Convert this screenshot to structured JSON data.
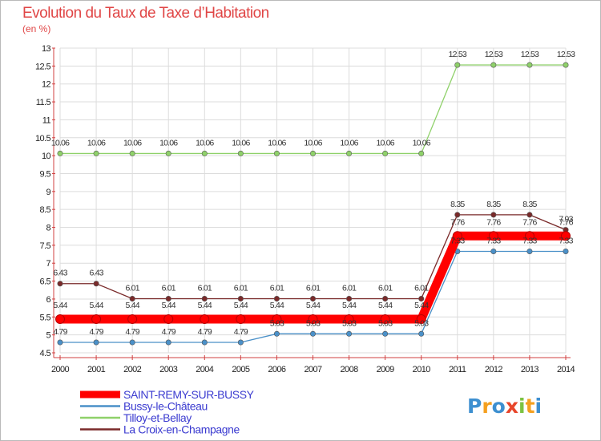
{
  "chart_data": {
    "type": "line",
    "title": "Evolution du Taux de Taxe d’Habitation",
    "subtitle": "(en %)",
    "xlabel": "",
    "ylabel": "",
    "ylim": [
      4.5,
      13
    ],
    "ytick_labels": [
      "4.5",
      "5",
      "5.5",
      "6",
      "6.5",
      "7",
      "7.5",
      "8",
      "8.5",
      "9",
      "9.5",
      "10",
      "10.5",
      "11",
      "11.5",
      "12",
      "12.5",
      "13"
    ],
    "categories": [
      "2000",
      "2001",
      "2002",
      "2003",
      "2004",
      "2005",
      "2006",
      "2007",
      "2008",
      "2009",
      "2010",
      "2011",
      "2012",
      "2013",
      "2014"
    ],
    "grid": true,
    "legend_position": "bottom-left",
    "series": [
      {
        "name": "SAINT-REMY-SUR-BUSSY",
        "color": "#ff0000",
        "values": [
          5.44,
          5.44,
          5.44,
          5.44,
          5.44,
          5.44,
          5.44,
          5.44,
          5.44,
          5.44,
          5.44,
          7.76,
          7.76,
          7.76,
          7.76
        ],
        "labels": [
          "5.44",
          "5.44",
          "5.44",
          "5.44",
          "5.44",
          "5.44",
          "5.44",
          "5.44",
          "5.44",
          "5.44",
          "5.44",
          "7.76",
          "7.76",
          "7.76",
          "7.76"
        ]
      },
      {
        "name": "Bussy-le-Château",
        "color": "#4a90c8",
        "values": [
          4.79,
          4.79,
          4.79,
          4.79,
          4.79,
          4.79,
          5.03,
          5.03,
          5.03,
          5.03,
          5.03,
          7.33,
          7.33,
          7.33,
          7.33
        ],
        "labels": [
          "4.79",
          "4.79",
          "4.79",
          "4.79",
          "4.79",
          "4.79",
          "5.03",
          "5.03",
          "5.03",
          "5.03",
          "5.03",
          "7.33",
          "7.33",
          "7.33",
          "7.33"
        ]
      },
      {
        "name": "Tilloy-et-Bellay",
        "color": "#8fd16a",
        "values": [
          10.06,
          10.06,
          10.06,
          10.06,
          10.06,
          10.06,
          10.06,
          10.06,
          10.06,
          10.06,
          10.06,
          12.53,
          12.53,
          12.53,
          12.53
        ],
        "labels": [
          "10.06",
          "10.06",
          "10.06",
          "10.06",
          "10.06",
          "10.06",
          "10.06",
          "10.06",
          "10.06",
          "10.06",
          "10.06",
          "12.53",
          "12.53",
          "12.53",
          "12.53"
        ]
      },
      {
        "name": "La Croix-en-Champagne",
        "color": "#7a2a2a",
        "values": [
          6.43,
          6.43,
          6.01,
          6.01,
          6.01,
          6.01,
          6.01,
          6.01,
          6.01,
          6.01,
          6.01,
          8.35,
          8.35,
          8.35,
          7.93
        ],
        "labels": [
          "6.43",
          "6.43",
          "6.01",
          "6.01",
          "6.01",
          "6.01",
          "6.01",
          "6.01",
          "6.01",
          "6.01",
          "6.01",
          "8.35",
          "8.35",
          "8.35",
          "7.93"
        ]
      }
    ]
  },
  "watermark": {
    "brand": "Proxiti",
    "letters": [
      "P",
      "r",
      "o",
      "x",
      "i",
      "t",
      "i"
    ],
    "colors": [
      "#3d8fd0",
      "#f4a020",
      "#3d8fd0",
      "#e8462b",
      "#7cc242",
      "#f4a020",
      "#3d8fd0"
    ]
  },
  "colors": {
    "title": "#e04646",
    "legend_text": "#3b3bd0",
    "grid": "#dcdcdc",
    "axis": "#d04040"
  }
}
